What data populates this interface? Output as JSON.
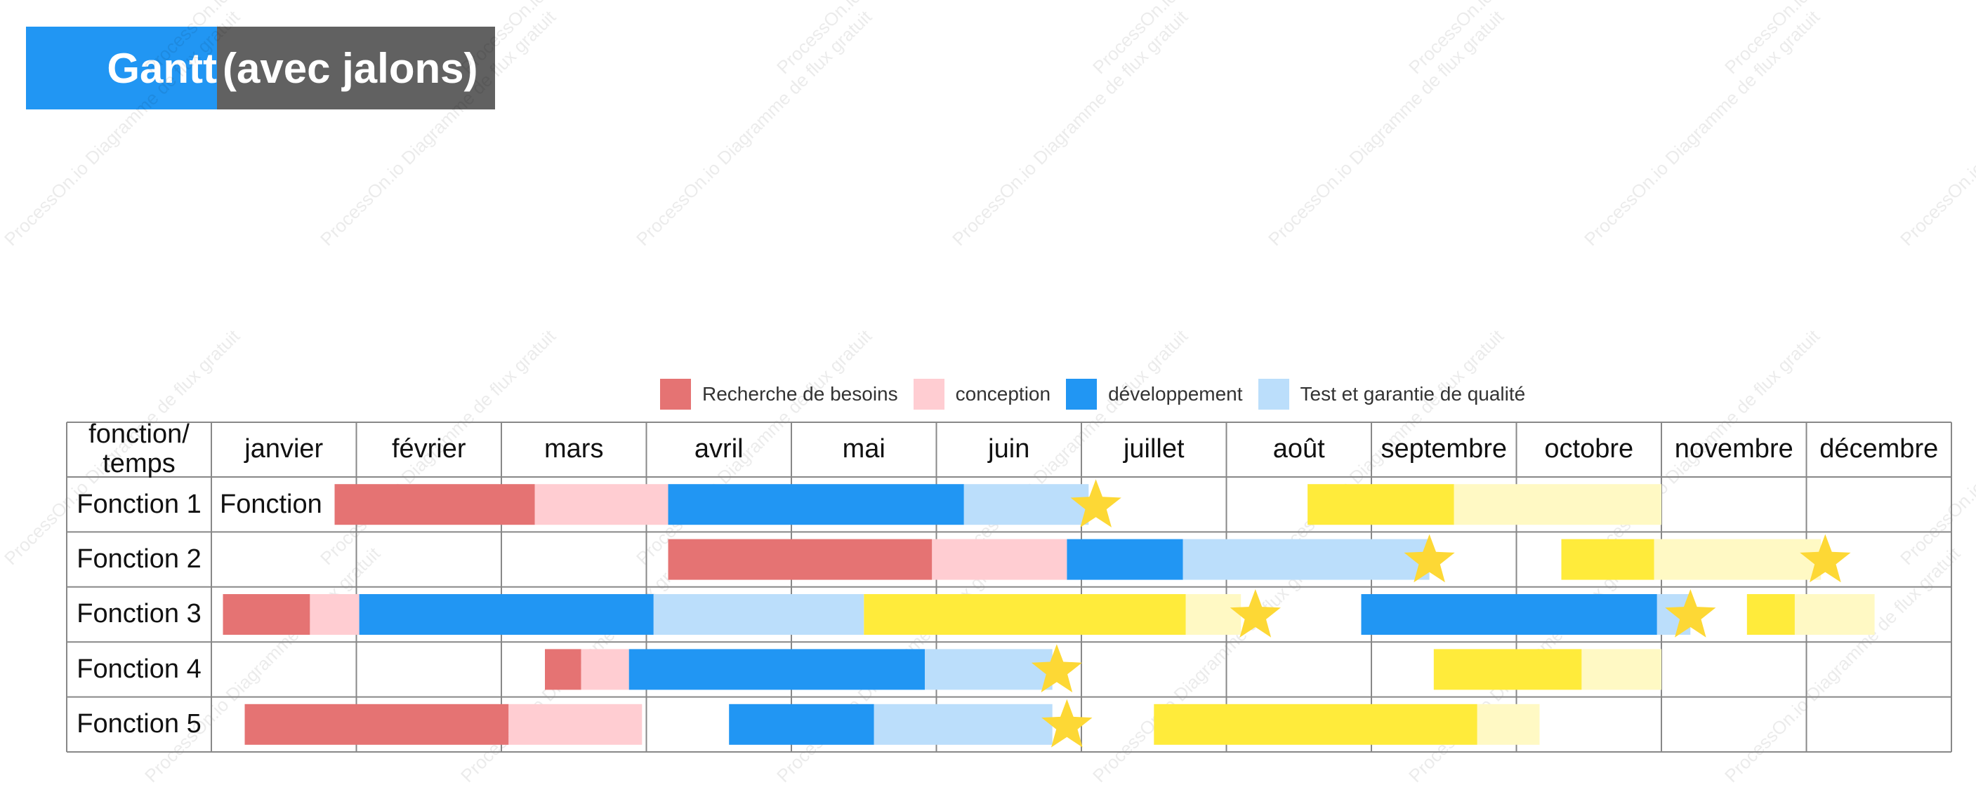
{
  "title": {
    "part1": "Gantt",
    "part2": "(avec jalons)"
  },
  "watermark_text": "ProcessOn.io Diagramme de flux gratuit",
  "legend": [
    {
      "label": "Recherche de besoins",
      "color": "#e57373"
    },
    {
      "label": "conception",
      "color": "#ffcdd2"
    },
    {
      "label": "développement",
      "color": "#2196f3"
    },
    {
      "label": "Test et garantie de qualité",
      "color": "#bbdefb"
    }
  ],
  "colors": {
    "research": "#e57373",
    "design": "#ffcdd2",
    "dev": "#2196f3",
    "test": "#bbdefb",
    "yellow": "#ffeb3b",
    "yellow_light": "#fff9c4",
    "milestone": "#fdd835",
    "grid": "#888888"
  },
  "corner_header": "fonction/\ntemps",
  "months": [
    "janvier",
    "février",
    "mars",
    "avril",
    "mai",
    "juin",
    "juillet",
    "août",
    "septembre",
    "octobre",
    "novembre",
    "décembre"
  ],
  "rows": [
    {
      "label": "Fonction 1",
      "inline_text": "Fonction",
      "segments": [
        {
          "type": "research",
          "start": 0.85,
          "end": 2.23
        },
        {
          "type": "design",
          "start": 2.23,
          "end": 3.15
        },
        {
          "type": "dev",
          "start": 3.15,
          "end": 5.19
        },
        {
          "type": "test",
          "start": 5.19,
          "end": 6.05
        },
        {
          "type": "yellow",
          "start": 7.56,
          "end": 8.57
        },
        {
          "type": "yellow_light",
          "start": 8.57,
          "end": 10.0
        }
      ],
      "milestones": [
        6.1
      ]
    },
    {
      "label": "Fonction 2",
      "segments": [
        {
          "type": "research",
          "start": 3.15,
          "end": 4.97
        },
        {
          "type": "design",
          "start": 4.97,
          "end": 5.9
        },
        {
          "type": "dev",
          "start": 5.9,
          "end": 6.7
        },
        {
          "type": "test",
          "start": 6.7,
          "end": 8.4
        },
        {
          "type": "yellow",
          "start": 9.31,
          "end": 9.95
        },
        {
          "type": "yellow_light",
          "start": 9.95,
          "end": 11.1
        }
      ],
      "milestones": [
        8.4,
        11.13
      ]
    },
    {
      "label": "Fonction 3",
      "segments": [
        {
          "type": "research",
          "start": 0.08,
          "end": 0.68
        },
        {
          "type": "design",
          "start": 0.68,
          "end": 1.02
        },
        {
          "type": "dev",
          "start": 1.02,
          "end": 3.05
        },
        {
          "type": "test",
          "start": 3.05,
          "end": 4.5
        },
        {
          "type": "yellow",
          "start": 4.5,
          "end": 6.72
        },
        {
          "type": "yellow_light",
          "start": 6.72,
          "end": 7.1
        },
        {
          "type": "dev",
          "start": 7.93,
          "end": 9.97
        },
        {
          "type": "test",
          "start": 9.97,
          "end": 10.2
        },
        {
          "type": "yellow",
          "start": 10.59,
          "end": 10.92
        },
        {
          "type": "yellow_light",
          "start": 10.92,
          "end": 11.47
        }
      ],
      "milestones": [
        7.2,
        10.2
      ]
    },
    {
      "label": "Fonction 4",
      "segments": [
        {
          "type": "research",
          "start": 2.3,
          "end": 2.55
        },
        {
          "type": "design",
          "start": 2.55,
          "end": 2.88
        },
        {
          "type": "dev",
          "start": 2.88,
          "end": 4.92
        },
        {
          "type": "test",
          "start": 4.92,
          "end": 5.8
        },
        {
          "type": "yellow",
          "start": 8.43,
          "end": 9.45
        },
        {
          "type": "yellow_light",
          "start": 9.45,
          "end": 10.0
        }
      ],
      "milestones": [
        5.83
      ]
    },
    {
      "label": "Fonction 5",
      "segments": [
        {
          "type": "research",
          "start": 0.23,
          "end": 2.05
        },
        {
          "type": "design",
          "start": 2.05,
          "end": 2.97
        },
        {
          "type": "dev",
          "start": 3.57,
          "end": 4.57
        },
        {
          "type": "test",
          "start": 4.57,
          "end": 5.8
        },
        {
          "type": "yellow",
          "start": 6.5,
          "end": 8.73
        },
        {
          "type": "yellow_light",
          "start": 8.73,
          "end": 9.16
        }
      ],
      "milestones": [
        5.9
      ]
    }
  ]
}
